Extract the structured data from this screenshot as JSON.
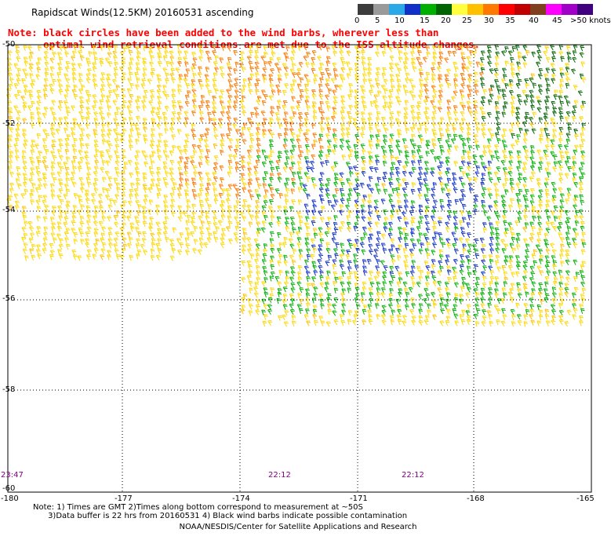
{
  "title": "Rapidscat Winds(12.5KM) 20160531 ascending",
  "note_lines": [
    "Note: black circles have been added to the wind barbs, wherever less than",
    "      optimal wind retrieval conditions are met due to the ISS altitude changes."
  ],
  "colorbar": {
    "labels": [
      "0",
      "5",
      "10",
      "15",
      "20",
      "25",
      "30",
      "35",
      "40",
      "45",
      ">50 knots"
    ],
    "colors": [
      "#3c3c3c",
      "#9a9a9a",
      "#2aa8e8",
      "#1030c8",
      "#00b000",
      "#006400",
      "#ffff40",
      "#ffc000",
      "#ff7800",
      "#ff0000",
      "#c00000",
      "#804020",
      "#ff00ff",
      "#a000c8",
      "#400080"
    ]
  },
  "axes": {
    "y_labels": [
      "-50",
      "-52",
      "-54",
      "-56",
      "-58",
      "-60"
    ],
    "x_labels": [
      "-180",
      "-177",
      "-174",
      "-171",
      "-168",
      "-165"
    ]
  },
  "time_labels": [
    "23:47",
    "22:12",
    "22:12"
  ],
  "footnote_lines": [
    "Note: 1) Times are GMT 2)Times along bottom correspond to measurement at ~50S",
    "      3)Data buffer is 22 hrs from 20160531 4) Black wind barbs indicate possible contamination"
  ],
  "credit": "NOAA/NESDIS/Center for Satellite Applications and Research"
}
